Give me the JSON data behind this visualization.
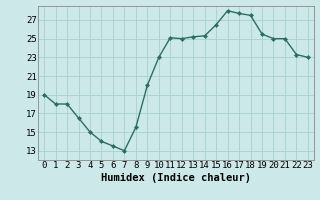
{
  "x": [
    0,
    1,
    2,
    3,
    4,
    5,
    6,
    7,
    8,
    9,
    10,
    11,
    12,
    13,
    14,
    15,
    16,
    17,
    18,
    19,
    20,
    21,
    22,
    23
  ],
  "y": [
    19,
    18,
    18,
    16.5,
    15,
    14,
    13.5,
    13,
    15.5,
    20,
    23,
    25.1,
    25,
    25.2,
    25.3,
    26.5,
    28,
    27.7,
    27.5,
    25.5,
    25,
    25,
    23.3,
    23
  ],
  "line_color": "#2d6e62",
  "marker": "D",
  "marker_size": 2.0,
  "bg_color": "#cce8e8",
  "grid_color": "#aad4d4",
  "xlabel": "Humidex (Indice chaleur)",
  "xlabel_fontsize": 7.5,
  "yticks": [
    13,
    15,
    17,
    19,
    21,
    23,
    25,
    27
  ],
  "ylim": [
    12.0,
    28.5
  ],
  "xlim": [
    -0.5,
    23.5
  ],
  "tick_fontsize": 6.5,
  "linewidth": 1.0
}
